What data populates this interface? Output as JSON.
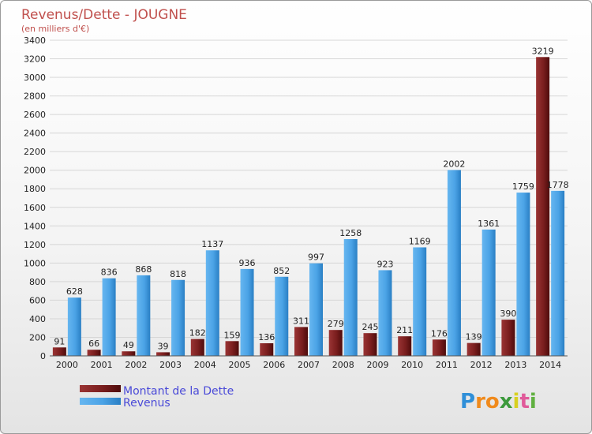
{
  "chart_data": {
    "type": "bar",
    "title": "Revenus/Dette - JOUGNE",
    "subtitle": "(en milliers d'€)",
    "categories": [
      "2000",
      "2001",
      "2002",
      "2003",
      "2004",
      "2005",
      "2006",
      "2007",
      "2008",
      "2009",
      "2010",
      "2011",
      "2012",
      "2013",
      "2014"
    ],
    "series": [
      {
        "name": "Montant de la Dette",
        "color": "#7a1e1e",
        "values": [
          91,
          66,
          49,
          39,
          182,
          159,
          136,
          311,
          279,
          245,
          211,
          176,
          139,
          390,
          3219
        ]
      },
      {
        "name": "Revenus",
        "color": "#4ba3e6",
        "values": [
          628,
          836,
          868,
          818,
          1137,
          936,
          852,
          997,
          1258,
          923,
          1169,
          2002,
          1361,
          1759,
          1778
        ]
      }
    ],
    "ylim": [
      0,
      3400
    ],
    "ytick_step": 200,
    "grid": true,
    "legend_position": "bottom-left"
  },
  "logo": {
    "letters": [
      "P",
      "r",
      "o",
      "x",
      "i",
      "t",
      "i"
    ],
    "colors": [
      "#2f8fd8",
      "#f08a1c",
      "#f08a1c",
      "#3c9a3c",
      "#d8d020",
      "#e05a9a",
      "#60b040"
    ]
  }
}
